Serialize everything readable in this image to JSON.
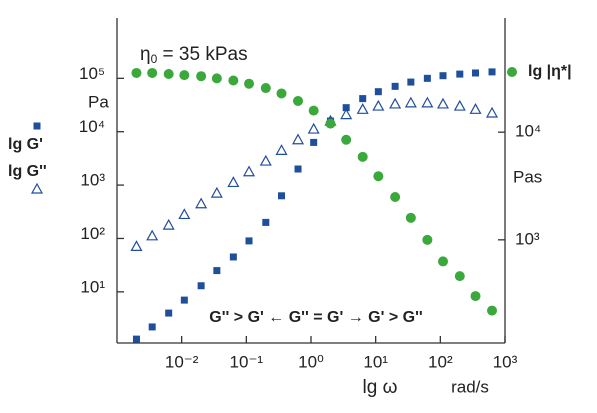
{
  "chart_data": {
    "type": "scatter",
    "annotation": {
      "symbol": "η",
      "subscript": "0",
      "text": " = 35 kPas"
    },
    "region_label": "G'' > G' ← G'' = G' → G' > G''",
    "x_label": "lg ω",
    "x_unit": "rad/s",
    "y_unit": "Pa",
    "y2_unit": "Pas",
    "xscale": "log",
    "yscale": "log",
    "y2scale": "log",
    "xlim": [
      0.001,
      1000
    ],
    "ylim": [
      1.1,
      1350000
    ],
    "y2lim": [
      110,
      115000
    ],
    "xticks": [
      {
        "value": 0.01,
        "label": "10⁻²"
      },
      {
        "value": 0.1,
        "label": "10⁻¹"
      },
      {
        "value": 1,
        "label": "10⁰"
      },
      {
        "value": 10,
        "label": "10¹"
      },
      {
        "value": 100,
        "label": "10²"
      },
      {
        "value": 1000,
        "label": "10³"
      }
    ],
    "yticks": [
      {
        "value": 10,
        "label": "10¹"
      },
      {
        "value": 100,
        "label": "10²"
      },
      {
        "value": 1000,
        "label": "10³"
      },
      {
        "value": 10000,
        "label": "10⁴"
      },
      {
        "value": 100000,
        "label": "10⁵"
      }
    ],
    "y2ticks": [
      {
        "value": 1000,
        "label": "10³"
      },
      {
        "value": 10000,
        "label": "10⁴"
      }
    ],
    "x": [
      0.002,
      0.0035,
      0.0063,
      0.011,
      0.02,
      0.035,
      0.063,
      0.11,
      0.2,
      0.35,
      0.63,
      1.1,
      2,
      3.5,
      6.3,
      11,
      20,
      35,
      63,
      110,
      200,
      350,
      630
    ],
    "series": [
      {
        "name": "lg G'",
        "color": "#1f4e9c",
        "marker": "square",
        "axis": "y",
        "values": [
          1.3,
          2.2,
          4,
          7,
          13,
          25,
          45,
          90,
          200,
          630,
          2000,
          6300,
          15850,
          28200,
          41700,
          56200,
          70800,
          85100,
          100000,
          112000,
          120000,
          126000,
          132000
        ]
      },
      {
        "name": "lg G''",
        "color": "#1f4e9c",
        "marker": "triangle",
        "axis": "y",
        "values": [
          71,
          112,
          178,
          282,
          447,
          708,
          1122,
          1778,
          2818,
          4467,
          7079,
          11220,
          15850,
          20890,
          26300,
          30200,
          33100,
          34700,
          34700,
          33100,
          30200,
          26300,
          22400
        ]
      },
      {
        "name": "lg |η*|",
        "color": "#3aa83a",
        "marker": "circle",
        "axis": "y2",
        "values": [
          35500,
          35500,
          34700,
          33900,
          33100,
          31600,
          30200,
          28200,
          25700,
          22900,
          19500,
          15850,
          12000,
          8500,
          5900,
          3900,
          2500,
          1600,
          1000,
          630,
          460,
          300,
          220
        ]
      }
    ]
  }
}
